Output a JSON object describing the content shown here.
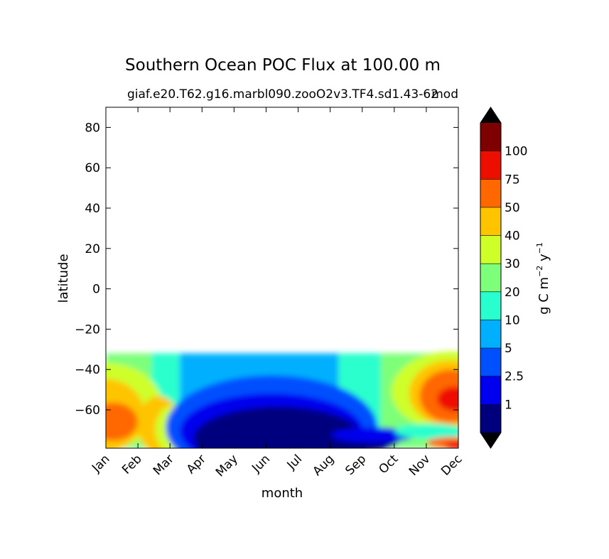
{
  "chart_data": {
    "type": "heatmap",
    "title": "Southern Ocean POC Flux at 100.00 m",
    "subtitle": "giaf.e20.T62.g16.marbl090.zooO2v3.TF4.sd1.43-62",
    "subtitle_overlap": "mod",
    "xlabel": "month",
    "ylabel": "latitude",
    "x_categories": [
      "Jan",
      "Feb",
      "Mar",
      "Apr",
      "May",
      "Jun",
      "Jul",
      "Aug",
      "Sep",
      "Oct",
      "Nov",
      "Dec"
    ],
    "ylim": [
      -79,
      90
    ],
    "y_ticks": [
      80,
      60,
      40,
      20,
      0,
      -20,
      -40,
      -60
    ],
    "y_tick_labels": [
      "80",
      "60",
      "40",
      "20",
      "0",
      "−20",
      "−40",
      "−60"
    ],
    "data_lat_range": [
      -78,
      -32
    ],
    "colorbar": {
      "label": "g C m⁻² y⁻¹",
      "label_main": "g C m",
      "label_exp1": "−2",
      "label_mid": " y",
      "label_exp2": "−1",
      "extend": "both",
      "levels": [
        0,
        1,
        2.5,
        5,
        10,
        20,
        30,
        40,
        50,
        75,
        100,
        125
      ],
      "tick_labels": [
        "1",
        "2.5",
        "5",
        "10",
        "20",
        "30",
        "40",
        "50",
        "75",
        "100"
      ],
      "colors": [
        "#00007f",
        "#0000ee",
        "#0050ff",
        "#00b0ff",
        "#29ffce",
        "#7dff7a",
        "#ceff29",
        "#ffc400",
        "#ff6800",
        "#ee0e00",
        "#7f0000"
      ],
      "over_color": "#000000",
      "under_color": "#000000"
    },
    "grid": false
  }
}
